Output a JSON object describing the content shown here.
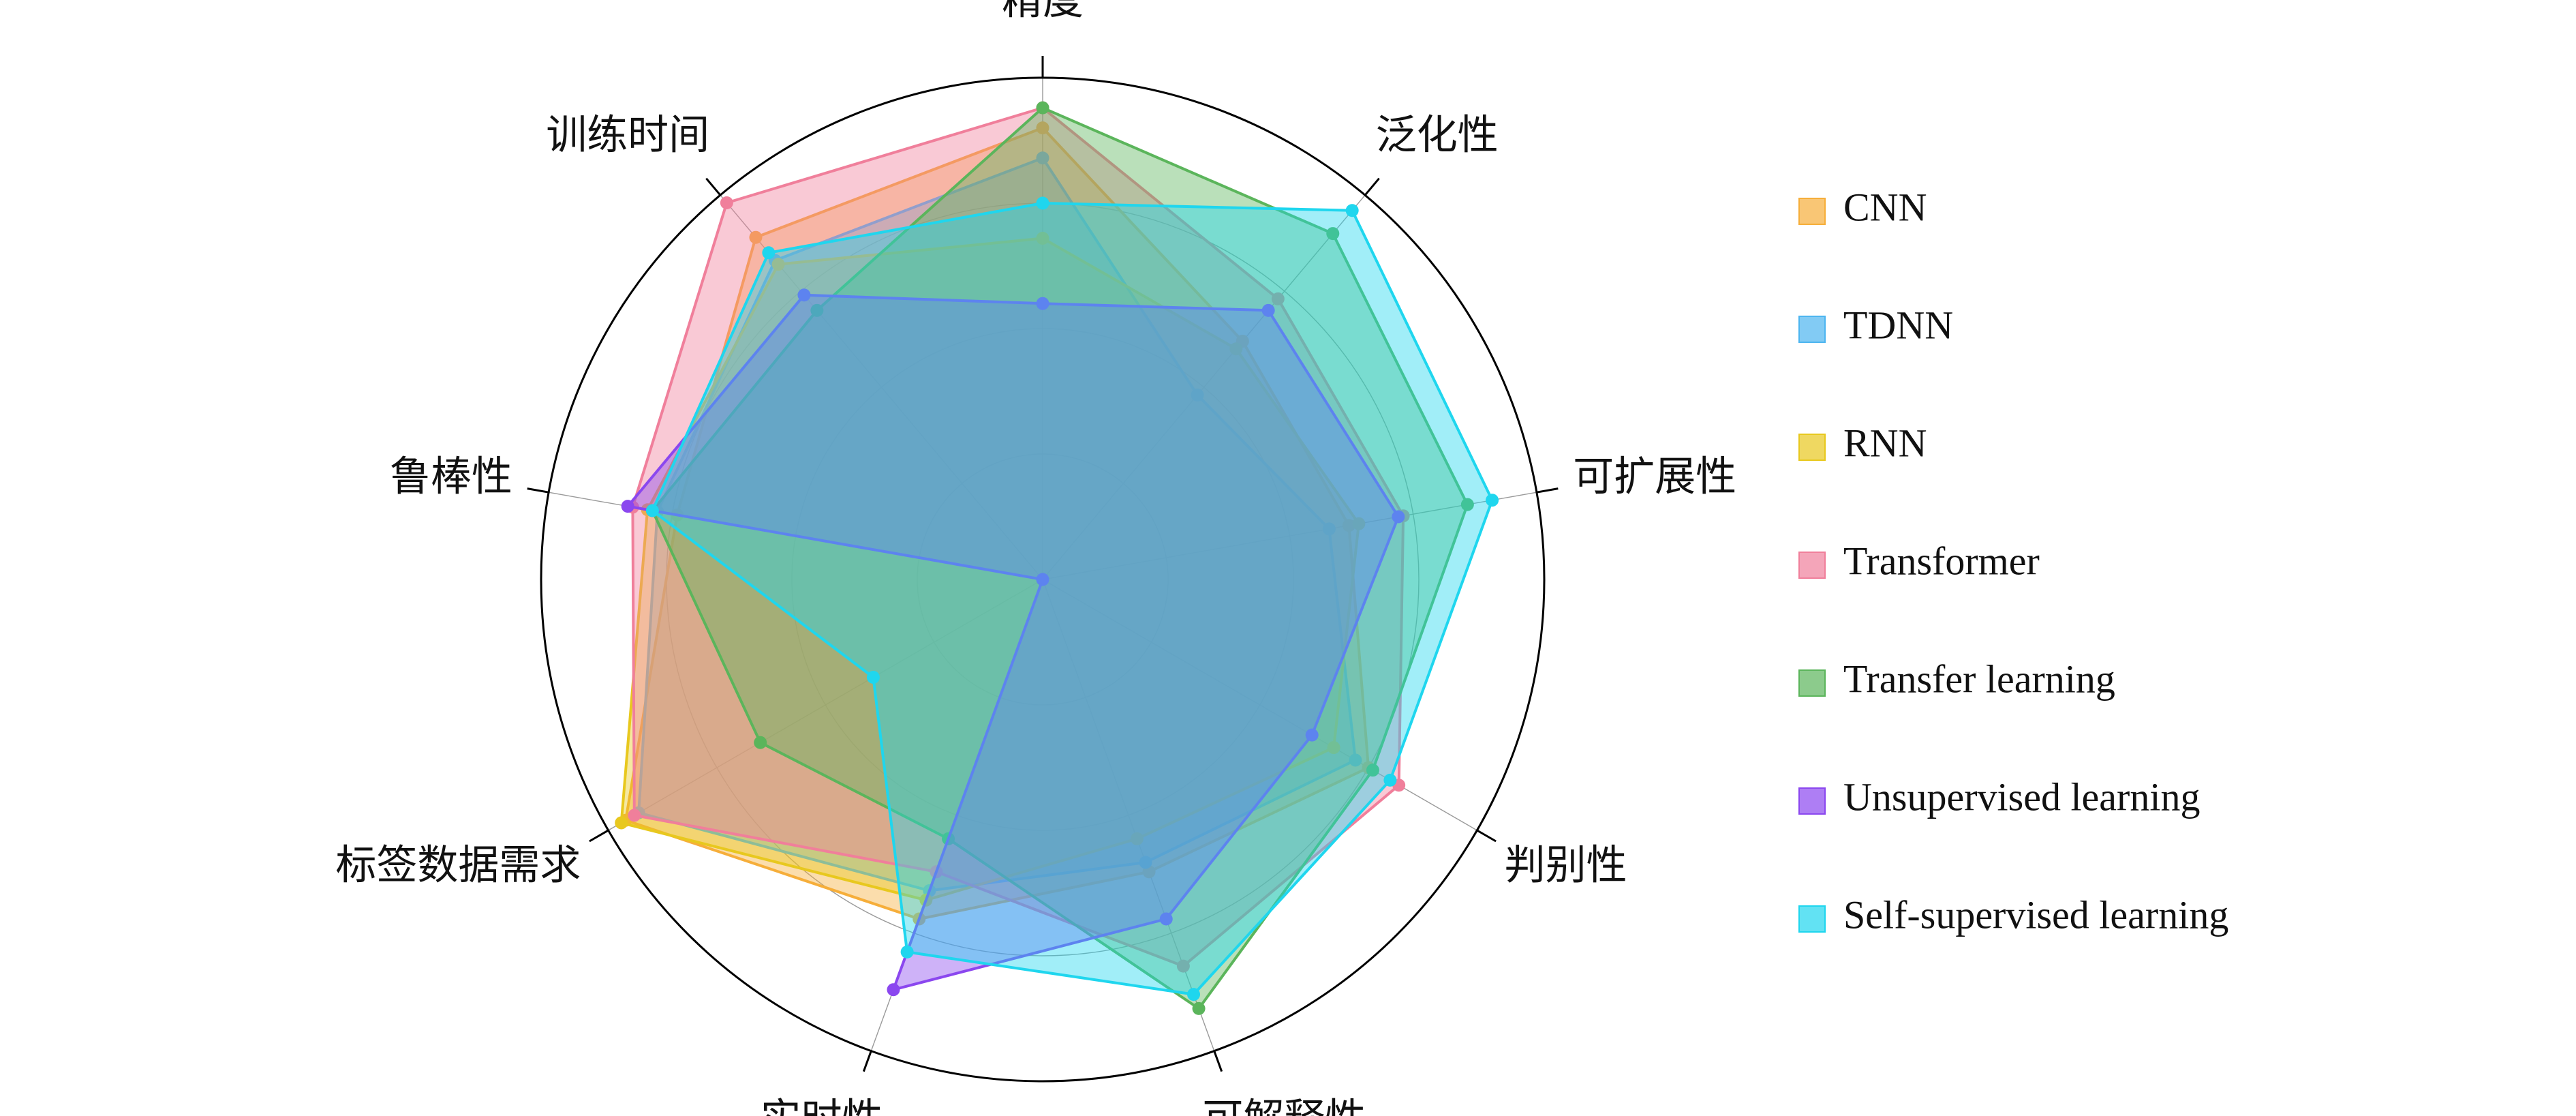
{
  "chart_data": {
    "type": "radar",
    "title": "",
    "axes": [
      "精度",
      "泛化性",
      "可扩展性",
      "判别性",
      "可解释性",
      "实时性",
      "标签数据需求",
      "鲁棒性",
      "训练时间"
    ],
    "rlim": [
      0,
      1
    ],
    "grid": true,
    "legend_position": "right",
    "series": [
      {
        "name": "CNN",
        "color": "#F6AE3A",
        "values": [
          0.9,
          0.62,
          0.62,
          0.75,
          0.62,
          0.72,
          0.96,
          0.74,
          0.89
        ]
      },
      {
        "name": "TDNN",
        "color": "#4DB5F0",
        "values": [
          0.84,
          0.48,
          0.58,
          0.72,
          0.6,
          0.66,
          0.93,
          0.78,
          0.83
        ]
      },
      {
        "name": "RNN",
        "color": "#E8C81E",
        "values": [
          0.68,
          0.6,
          0.64,
          0.67,
          0.55,
          0.68,
          0.97,
          0.8,
          0.82
        ]
      },
      {
        "name": "Transformer",
        "color": "#F07F9B",
        "values": [
          0.94,
          0.73,
          0.73,
          0.82,
          0.82,
          0.62,
          0.94,
          0.83,
          0.98
        ]
      },
      {
        "name": "Transfer learning",
        "color": "#5BB55B",
        "values": [
          0.94,
          0.9,
          0.86,
          0.76,
          0.91,
          0.55,
          0.65,
          0.79,
          0.7
        ]
      },
      {
        "name": "Unsupervised learning",
        "color": "#8B47EF",
        "values": [
          0.55,
          0.7,
          0.72,
          0.62,
          0.72,
          0.87,
          0.0,
          0.84,
          0.74
        ]
      },
      {
        "name": "Self-supervised learning",
        "color": "#1FD6EE",
        "values": [
          0.75,
          0.96,
          0.91,
          0.8,
          0.88,
          0.79,
          0.39,
          0.79,
          0.85
        ]
      }
    ]
  }
}
